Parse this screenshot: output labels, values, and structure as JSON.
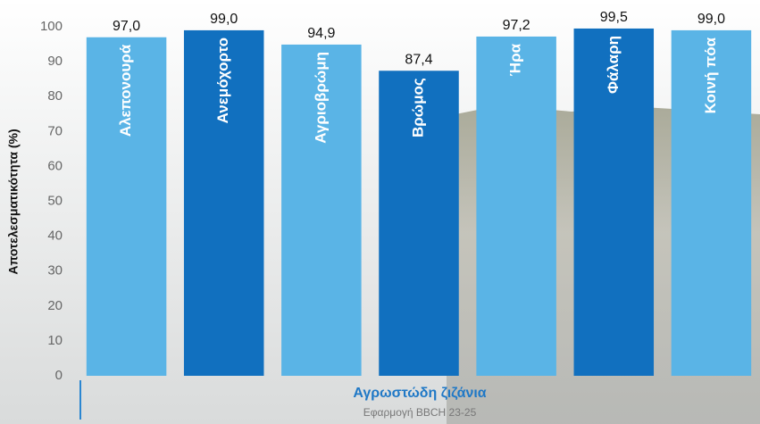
{
  "chart_data": {
    "type": "bar",
    "x_label": "Αγρωστώδη ζιζάνια",
    "subtitle": "Εφαρμογή  BBCH 23-25",
    "y_label": "Αποτελεσματικότητα (%)",
    "categories": [
      "Αλεπονουρά",
      "Ανεμόχορτο",
      "Αγριοβρώμη",
      "Βρώμος",
      "Ήρα",
      "Φάλαρη",
      "Κοινή πόα"
    ],
    "values": [
      97.0,
      99.0,
      94.9,
      87.4,
      97.2,
      99.5,
      99.0
    ],
    "value_labels": [
      "97,0",
      "99,0",
      "94,9",
      "87,4",
      "97,2",
      "99,5",
      "99,0"
    ],
    "colors": [
      "#5ab4e6",
      "#1170bf",
      "#5ab4e6",
      "#1170bf",
      "#5ab4e6",
      "#1170bf",
      "#5ab4e6"
    ],
    "ylim": [
      0,
      100
    ],
    "yticks": [
      0,
      10,
      20,
      30,
      40,
      50,
      60,
      70,
      80,
      90,
      100
    ],
    "grid": false
  }
}
